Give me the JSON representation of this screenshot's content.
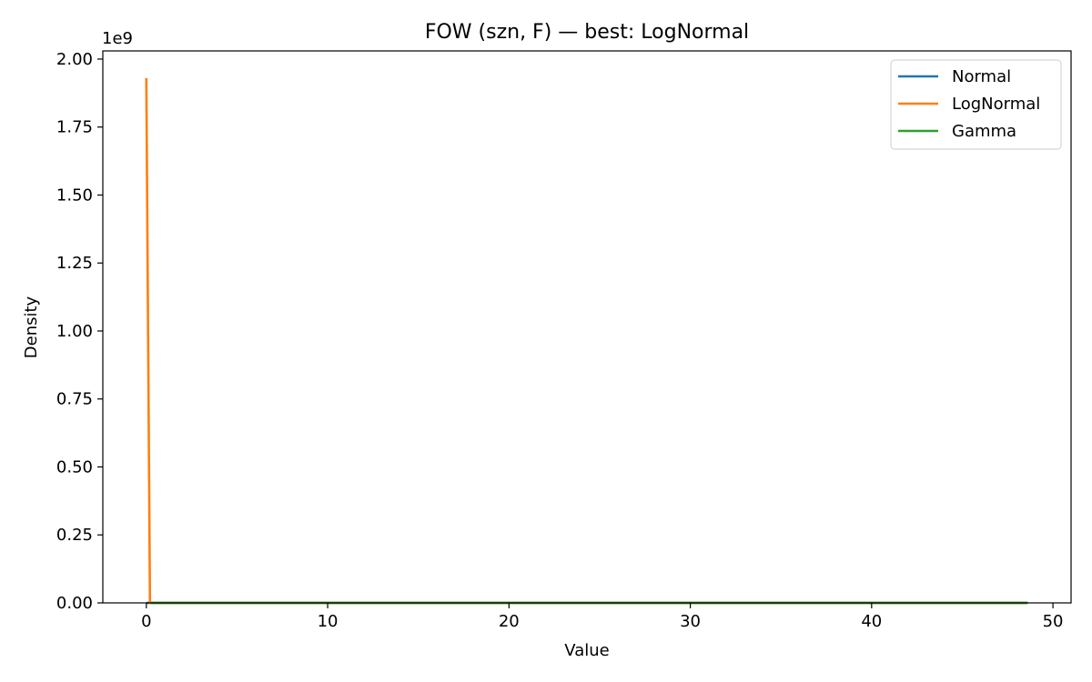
{
  "chart_data": {
    "type": "line",
    "title": "FOW (szn, F) — best: LogNormal",
    "xlabel": "Value",
    "ylabel": "Density",
    "y_offset_label": "1e9",
    "y_scale": 1000000000,
    "xlim": [
      -2.4,
      51.0
    ],
    "ylim": [
      0,
      2.03
    ],
    "x_ticks": [
      0,
      10,
      20,
      30,
      40,
      50
    ],
    "x_tick_labels": [
      "0",
      "10",
      "20",
      "30",
      "40",
      "50"
    ],
    "y_ticks": [
      0,
      0.25,
      0.5,
      0.75,
      1.0,
      1.25,
      1.5,
      1.75,
      2.0
    ],
    "y_tick_labels": [
      "0.00",
      "0.25",
      "0.50",
      "0.75",
      "1.00",
      "1.25",
      "1.50",
      "1.75",
      "2.00"
    ],
    "grid": false,
    "legend_position": "top-right",
    "series": [
      {
        "name": "Normal",
        "color": "#1f77b4",
        "x": [
          0.0,
          48.6
        ],
        "y": [
          0.0,
          0.0
        ]
      },
      {
        "name": "LogNormal",
        "color": "#ff7f0e",
        "x": [
          0.0,
          0.2,
          0.25,
          48.6
        ],
        "y": [
          1.93,
          0.0,
          0.0,
          0.0
        ]
      },
      {
        "name": "Gamma",
        "color": "#2ca02c",
        "x": [
          0.25,
          48.6
        ],
        "y": [
          0.0,
          0.0
        ]
      }
    ]
  }
}
